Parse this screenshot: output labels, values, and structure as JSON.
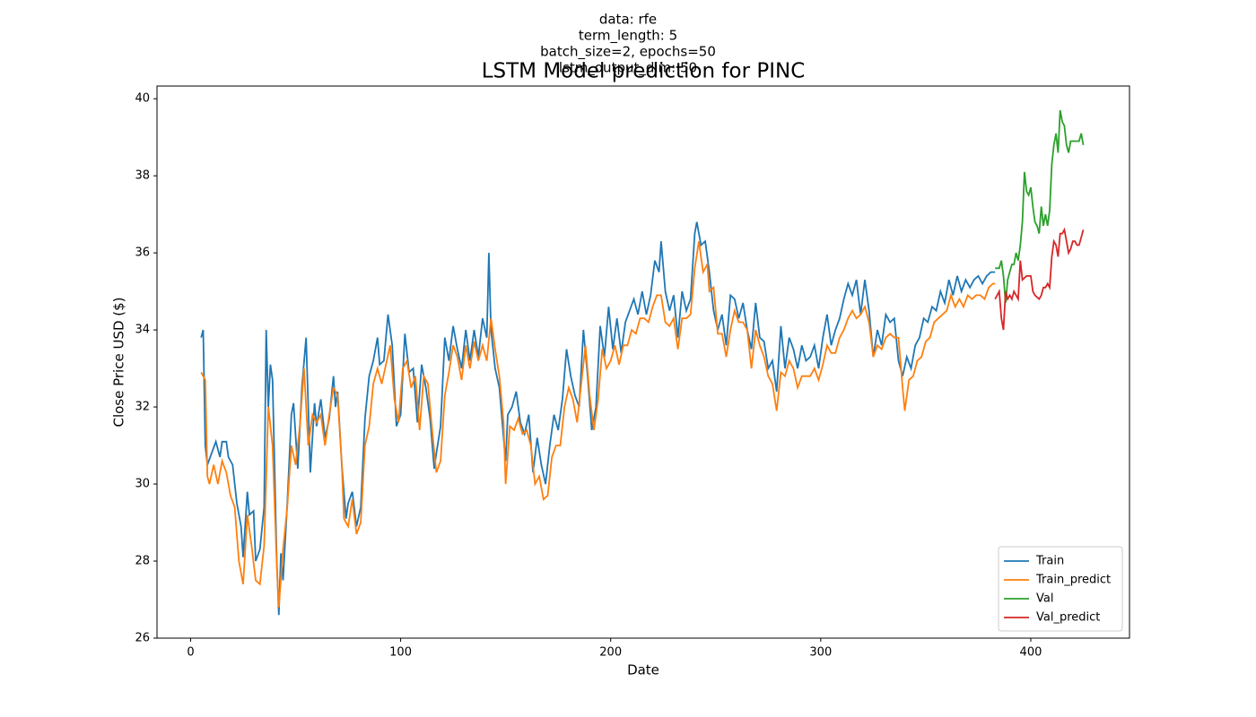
{
  "chart_data": {
    "type": "line",
    "title": "LSTM Model prediction for PINC",
    "subtitle": [
      "data: rfe",
      "term_length: 5",
      "batch_size=2, epochs=50",
      "lstm_output_dim: 50"
    ],
    "x_label": "Date",
    "y_label": "Close Price USD ($)",
    "xlim": [
      -16,
      447
    ],
    "ylim": [
      26,
      40.33
    ],
    "xticks": [
      0,
      100,
      200,
      300,
      400
    ],
    "yticks": [
      26,
      28,
      30,
      32,
      34,
      36,
      38,
      40
    ],
    "grid": false,
    "legend": "lower right",
    "series": [
      {
        "name": "Train",
        "color": "#1f77b4",
        "x": [
          5,
          6,
          7,
          8,
          10,
          12,
          14,
          15,
          17,
          18,
          20,
          22,
          24,
          25,
          27,
          28,
          30,
          31,
          33,
          35,
          36,
          37,
          38,
          39,
          41,
          42,
          43,
          44,
          46,
          48,
          49,
          51,
          53,
          55,
          57,
          59,
          60,
          62,
          64,
          66,
          68,
          69,
          70,
          72,
          74,
          75,
          77,
          79,
          81,
          83,
          85,
          87,
          89,
          90,
          92,
          94,
          96,
          98,
          100,
          102,
          104,
          106,
          108,
          110,
          112,
          114,
          116,
          117,
          119,
          121,
          123,
          125,
          127,
          129,
          131,
          133,
          135,
          137,
          139,
          141,
          142,
          143,
          145,
          147,
          149,
          150,
          151,
          153,
          155,
          157,
          159,
          161,
          163,
          165,
          167,
          169,
          171,
          173,
          175,
          177,
          179,
          181,
          183,
          185,
          187,
          189,
          191,
          193,
          195,
          197,
          199,
          201,
          203,
          205,
          207,
          209,
          211,
          213,
          215,
          217,
          219,
          221,
          223,
          224,
          226,
          228,
          230,
          232,
          234,
          236,
          238,
          240,
          241,
          243,
          245,
          247,
          249,
          251,
          253,
          255,
          257,
          259,
          261,
          263,
          265,
          267,
          269,
          271,
          273,
          275,
          277,
          279,
          281,
          283,
          285,
          287,
          289,
          291,
          293,
          295,
          297,
          299,
          301,
          303,
          305,
          307,
          309,
          311,
          313,
          315,
          317,
          319,
          321,
          323,
          325,
          327,
          329,
          331,
          333,
          335,
          337,
          339,
          341,
          343,
          345,
          347,
          349,
          351,
          353,
          355,
          357,
          359,
          361,
          363,
          365,
          367,
          369,
          371,
          373,
          375,
          377,
          379,
          381,
          383
        ],
        "values": [
          33.8,
          34.0,
          31.0,
          30.5,
          30.8,
          31.1,
          30.7,
          31.1,
          31.1,
          30.7,
          30.5,
          29.5,
          28.9,
          28.1,
          29.8,
          29.2,
          29.3,
          28.0,
          28.3,
          29.4,
          34.0,
          32.0,
          33.1,
          32.7,
          28.0,
          26.6,
          28.2,
          27.5,
          29.5,
          31.8,
          32.1,
          30.4,
          32.5,
          33.8,
          30.3,
          32.1,
          31.5,
          32.2,
          31.2,
          31.7,
          32.8,
          32.0,
          32.4,
          30.5,
          29.1,
          29.5,
          29.8,
          28.9,
          29.4,
          31.7,
          32.8,
          33.2,
          33.8,
          33.1,
          33.2,
          34.4,
          33.6,
          31.5,
          31.8,
          33.9,
          32.9,
          33.0,
          31.6,
          33.1,
          32.5,
          31.7,
          30.4,
          30.8,
          31.5,
          33.8,
          33.2,
          34.1,
          33.5,
          33.0,
          34.0,
          33.2,
          34.0,
          33.3,
          34.3,
          33.8,
          36.0,
          34.0,
          33.0,
          32.5,
          31.2,
          30.6,
          31.8,
          32.0,
          32.4,
          31.6,
          31.3,
          31.8,
          30.3,
          31.2,
          30.5,
          30.0,
          31.0,
          31.8,
          31.4,
          32.2,
          33.5,
          32.8,
          32.3,
          32.0,
          34.0,
          32.8,
          31.4,
          32.0,
          34.1,
          33.3,
          34.6,
          33.5,
          34.3,
          33.4,
          34.2,
          34.5,
          34.8,
          34.4,
          35.0,
          34.4,
          34.9,
          35.8,
          35.5,
          36.3,
          35.0,
          34.5,
          34.9,
          33.8,
          35.0,
          34.5,
          34.8,
          36.5,
          36.8,
          36.2,
          36.3,
          35.5,
          34.5,
          34.0,
          34.4,
          33.6,
          34.9,
          34.8,
          34.3,
          34.7,
          34.0,
          33.5,
          34.7,
          33.8,
          33.7,
          33.0,
          33.2,
          32.4,
          34.1,
          33.0,
          33.8,
          33.5,
          33.0,
          33.6,
          33.2,
          33.3,
          33.6,
          33.0,
          33.8,
          34.4,
          33.6,
          34.0,
          34.3,
          34.8,
          35.2,
          34.9,
          35.3,
          34.4,
          35.3,
          34.5,
          33.3,
          34.0,
          33.6,
          34.4,
          34.2,
          34.3,
          33.2,
          32.8,
          33.3,
          33.0,
          33.6,
          33.8,
          34.3,
          34.2,
          34.6,
          34.5,
          35.0,
          34.7,
          35.3,
          34.9,
          35.4,
          35.0,
          35.3,
          35.1,
          35.3,
          35.4,
          35.2,
          35.4,
          35.5,
          35.5
        ]
      },
      {
        "name": "Train_predict",
        "color": "#ff7f0e",
        "x": [
          5,
          7,
          8,
          9,
          11,
          13,
          15,
          17,
          19,
          21,
          23,
          25,
          27,
          29,
          31,
          33,
          35,
          37,
          39,
          41,
          42,
          44,
          46,
          48,
          50,
          52,
          54,
          56,
          58,
          60,
          62,
          64,
          66,
          68,
          70,
          72,
          73,
          75,
          77,
          79,
          81,
          83,
          85,
          87,
          89,
          91,
          93,
          95,
          97,
          99,
          101,
          103,
          105,
          107,
          109,
          111,
          113,
          115,
          117,
          119,
          121,
          123,
          125,
          127,
          129,
          131,
          133,
          135,
          137,
          139,
          141,
          143,
          145,
          147,
          149,
          150,
          152,
          154,
          156,
          158,
          160,
          162,
          164,
          166,
          168,
          170,
          172,
          174,
          176,
          178,
          180,
          182,
          184,
          186,
          188,
          190,
          192,
          194,
          196,
          198,
          200,
          202,
          204,
          206,
          208,
          210,
          212,
          214,
          216,
          218,
          220,
          222,
          224,
          226,
          228,
          230,
          232,
          234,
          236,
          238,
          240,
          242,
          244,
          246,
          247,
          249,
          251,
          253,
          255,
          257,
          259,
          261,
          263,
          265,
          267,
          269,
          271,
          273,
          275,
          277,
          279,
          281,
          283,
          285,
          287,
          289,
          291,
          293,
          295,
          297,
          299,
          301,
          303,
          305,
          307,
          309,
          311,
          313,
          315,
          317,
          319,
          321,
          323,
          325,
          327,
          329,
          331,
          333,
          335,
          337,
          339,
          340,
          342,
          344,
          346,
          348,
          350,
          352,
          354,
          356,
          358,
          360,
          362,
          364,
          366,
          368,
          370,
          372,
          374,
          376,
          378,
          380,
          382,
          383
        ],
        "values": [
          32.9,
          32.7,
          30.2,
          30.0,
          30.5,
          30.0,
          30.6,
          30.3,
          29.7,
          29.4,
          28.0,
          27.4,
          29.2,
          28.4,
          27.5,
          27.4,
          28.4,
          32.0,
          31.0,
          27.9,
          26.8,
          28.3,
          29.4,
          31.0,
          30.5,
          31.5,
          33.0,
          31.0,
          31.8,
          31.6,
          31.8,
          31.0,
          31.8,
          32.5,
          32.3,
          30.5,
          29.1,
          28.9,
          29.6,
          28.7,
          29.0,
          31.0,
          31.5,
          32.6,
          33.0,
          32.6,
          33.1,
          33.6,
          32.2,
          31.6,
          33.0,
          33.2,
          32.5,
          32.8,
          31.4,
          32.8,
          32.6,
          31.4,
          30.3,
          30.6,
          32.3,
          32.9,
          33.6,
          33.3,
          32.7,
          33.6,
          33.0,
          33.7,
          33.2,
          33.6,
          33.2,
          34.3,
          33.5,
          32.8,
          31.6,
          30.0,
          31.5,
          31.4,
          31.7,
          31.3,
          31.4,
          31.0,
          30.0,
          30.2,
          29.6,
          29.7,
          30.7,
          31.0,
          31.0,
          32.0,
          32.5,
          32.2,
          31.6,
          32.6,
          33.6,
          32.3,
          31.4,
          32.2,
          33.5,
          33.0,
          33.2,
          33.6,
          33.1,
          33.6,
          33.6,
          34.0,
          33.9,
          34.3,
          34.3,
          34.2,
          34.6,
          34.9,
          34.9,
          34.2,
          34.1,
          34.3,
          33.5,
          34.3,
          34.3,
          34.4,
          35.6,
          36.3,
          35.5,
          35.7,
          35.0,
          35.1,
          33.9,
          33.9,
          33.3,
          34.0,
          34.5,
          34.2,
          34.2,
          34.0,
          33.0,
          34.0,
          33.6,
          33.3,
          32.8,
          32.6,
          31.9,
          32.9,
          32.8,
          33.2,
          33.0,
          32.5,
          32.8,
          32.8,
          32.8,
          33.0,
          32.7,
          33.1,
          33.6,
          33.4,
          33.4,
          33.8,
          34.0,
          34.3,
          34.5,
          34.3,
          34.4,
          34.6,
          34.2,
          33.3,
          33.6,
          33.5,
          33.8,
          33.9,
          33.8,
          33.8,
          32.5,
          31.9,
          32.7,
          32.8,
          33.2,
          33.3,
          33.7,
          33.8,
          34.2,
          34.3,
          34.4,
          34.5,
          34.9,
          34.6,
          34.8,
          34.6,
          34.9,
          34.8,
          34.9,
          34.9,
          34.8,
          35.1,
          35.2,
          35.2
        ]
      },
      {
        "name": "Val",
        "color": "#2ca02c",
        "x": [
          383,
          385,
          386,
          387,
          388,
          389,
          390,
          391,
          392,
          393,
          394,
          395,
          396,
          397,
          398,
          399,
          400,
          401,
          402,
          403,
          404,
          405,
          406,
          407,
          408,
          409,
          410,
          411,
          412,
          413,
          414,
          415,
          416,
          417,
          418,
          419,
          420,
          421,
          422,
          423,
          424,
          425
        ],
        "values": [
          35.6,
          35.6,
          35.8,
          35.4,
          34.7,
          35.3,
          35.5,
          35.7,
          35.7,
          36.0,
          35.8,
          36.2,
          36.8,
          38.1,
          37.6,
          37.5,
          37.7,
          37.2,
          36.8,
          36.7,
          36.5,
          37.2,
          36.7,
          37.0,
          36.7,
          37.1,
          38.3,
          38.8,
          39.1,
          38.6,
          39.7,
          39.4,
          39.3,
          38.8,
          38.6,
          38.9,
          38.9,
          38.9,
          38.9,
          38.9,
          39.1,
          38.8
        ]
      },
      {
        "name": "Val_predict",
        "color": "#d62728",
        "x": [
          383,
          385,
          386,
          387,
          388,
          389,
          390,
          391,
          392,
          393,
          394,
          395,
          396,
          398,
          400,
          401,
          402,
          404,
          405,
          406,
          407,
          408,
          409,
          410,
          411,
          412,
          413,
          414,
          415,
          416,
          417,
          418,
          419,
          420,
          421,
          422,
          423,
          424,
          425
        ],
        "values": [
          34.8,
          35.0,
          34.3,
          34.0,
          35.0,
          34.8,
          34.9,
          34.8,
          35.0,
          34.9,
          34.8,
          35.8,
          35.3,
          35.4,
          35.4,
          35.0,
          34.9,
          34.8,
          34.9,
          35.1,
          35.1,
          35.2,
          35.1,
          35.9,
          36.3,
          36.2,
          35.9,
          36.5,
          36.5,
          36.6,
          36.3,
          36.0,
          36.1,
          36.3,
          36.3,
          36.2,
          36.2,
          36.4,
          36.6
        ]
      }
    ]
  }
}
